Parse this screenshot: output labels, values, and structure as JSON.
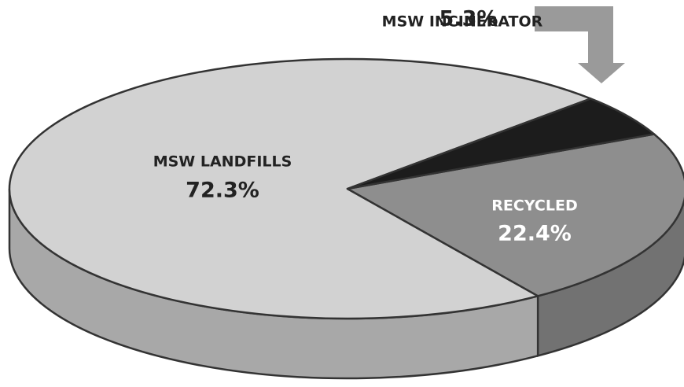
{
  "chart_data": {
    "type": "pie",
    "categories": [
      "MSW LANDFILLS",
      "RECYCLED",
      "MSW INCINERATOR"
    ],
    "values": [
      72.3,
      22.4,
      5.3
    ],
    "value_labels": [
      "72.3%",
      "22.4%",
      "5.3%"
    ],
    "colors": [
      "#d2d2d2",
      "#8e8e8e",
      "#1c1c1c"
    ]
  }
}
